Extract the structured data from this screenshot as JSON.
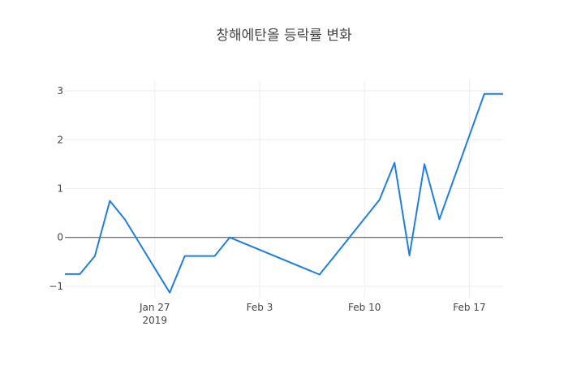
{
  "chart_data": {
    "type": "line",
    "title": "창해에탄올 등락률 변화",
    "xlabel": "",
    "ylabel": "",
    "x_range": [
      "2019-01-21",
      "2019-02-19"
    ],
    "ylim": [
      -1.25,
      3.2
    ],
    "grid": true,
    "zeroline": true,
    "line_color": "#1f7fe0",
    "x_ticks": [
      {
        "date": "2019-01-27",
        "label": "Jan 27",
        "sublabel": "2019"
      },
      {
        "date": "2019-02-03",
        "label": "Feb 3",
        "sublabel": ""
      },
      {
        "date": "2019-02-10",
        "label": "Feb 10",
        "sublabel": ""
      },
      {
        "date": "2019-02-17",
        "label": "Feb 17",
        "sublabel": ""
      }
    ],
    "y_ticks": [
      {
        "value": 3,
        "label": "3"
      },
      {
        "value": 2,
        "label": "2"
      },
      {
        "value": 1,
        "label": "1"
      },
      {
        "value": 0,
        "label": "0"
      },
      {
        "value": -1,
        "label": "−1"
      }
    ],
    "series": [
      {
        "x": [
          "2019-01-21",
          "2019-01-22",
          "2019-01-23",
          "2019-01-24",
          "2019-01-25",
          "2019-01-28",
          "2019-01-29",
          "2019-01-31",
          "2019-02-01",
          "2019-02-07",
          "2019-02-08",
          "2019-02-11",
          "2019-02-12",
          "2019-02-13",
          "2019-02-14",
          "2019-02-15",
          "2019-02-18",
          "2019-02-19"
        ],
        "y": [
          -0.75,
          -0.75,
          -0.38,
          0.75,
          0.37,
          -1.13,
          -0.38,
          -0.38,
          0.0,
          -0.76,
          -0.38,
          0.77,
          1.53,
          -0.37,
          1.5,
          0.37,
          2.94,
          2.94
        ]
      }
    ]
  }
}
